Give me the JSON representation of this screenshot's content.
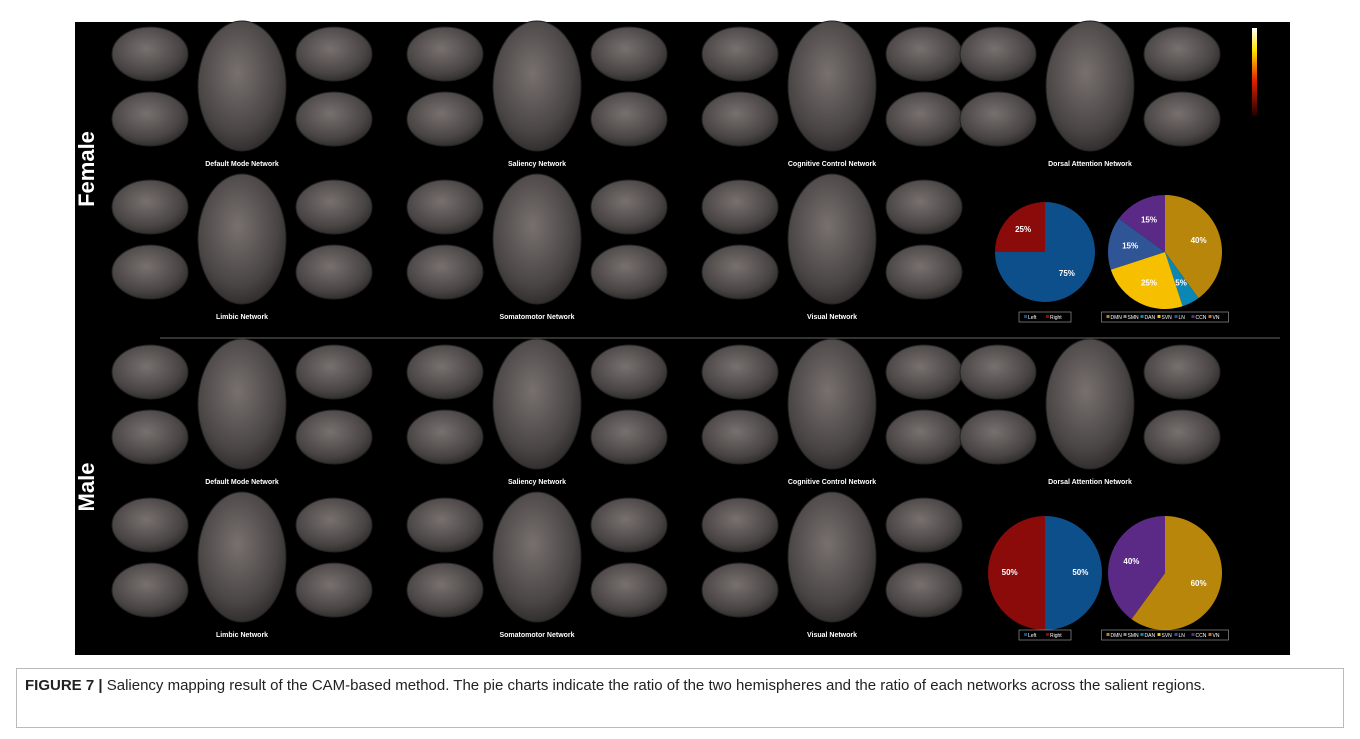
{
  "figure": {
    "rows": [
      {
        "label": "Female",
        "networks": [
          "Default Mode Network",
          "Saliency Network",
          "Cognitive Control Network",
          "Dorsal Attention Network",
          "Limbic Network",
          "Somatomotor Network",
          "Visual Network"
        ],
        "hemisphere_pie": {
          "type": "pie",
          "categories": [
            "Left",
            "Right"
          ],
          "values": [
            75,
            25
          ],
          "value_labels": [
            "75%",
            "25%"
          ],
          "colors": [
            "#0d4f8b",
            "#8b0a0a"
          ]
        },
        "network_pie": {
          "type": "pie",
          "categories": [
            "DMN",
            "SMN",
            "DAN",
            "SVN",
            "LN",
            "CCN",
            "VN"
          ],
          "values": [
            40,
            0,
            5,
            25,
            15,
            15,
            0
          ],
          "value_labels": [
            "40%",
            null,
            "5%",
            "25%",
            "15%",
            "15%",
            null
          ],
          "colors": [
            "#b8860b",
            "#8a8a8a",
            "#0a87b5",
            "#f6c000",
            "#2f5597",
            "#5b2a86",
            "#e36c09"
          ]
        }
      },
      {
        "label": "Male",
        "networks": [
          "Default Mode Network",
          "Saliency Network",
          "Cognitive Control Network",
          "Dorsal Attention Network",
          "Limbic Network",
          "Somatomotor Network",
          "Visual Network"
        ],
        "hemisphere_pie": {
          "type": "pie",
          "categories": [
            "Left",
            "Right"
          ],
          "values": [
            50,
            50
          ],
          "value_labels": [
            "50%",
            "50%"
          ],
          "colors": [
            "#0d4f8b",
            "#8b0a0a"
          ]
        },
        "network_pie": {
          "type": "pie",
          "categories": [
            "DMN",
            "SMN",
            "DAN",
            "SVN",
            "LN",
            "CCN",
            "VN"
          ],
          "values": [
            60,
            0,
            0,
            0,
            0,
            40,
            0
          ],
          "value_labels": [
            "60%",
            null,
            null,
            null,
            null,
            "40%",
            null
          ],
          "colors": [
            "#b8860b",
            "#8a8a8a",
            "#0a87b5",
            "#f6c000",
            "#2f5597",
            "#5b2a86",
            "#e36c09"
          ]
        }
      }
    ]
  },
  "caption": {
    "label": "FIGURE 7 |",
    "text": "Saliency mapping result of the CAM-based method. The pie charts indicate the ratio of the two hemispheres and the ratio of each networks across the salient regions."
  }
}
